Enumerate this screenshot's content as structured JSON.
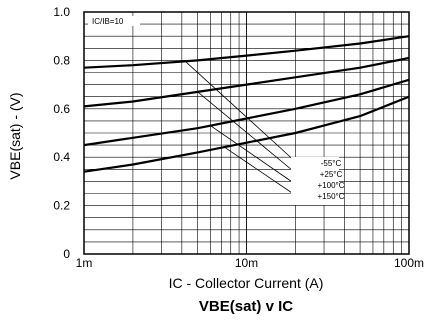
{
  "chart_data": {
    "type": "line",
    "title": "VBE(sat) v IC",
    "xlabel": "IC - Collector Current (A)",
    "ylabel": "VBE(sat) - (V)",
    "x_scale": "log",
    "xlim": [
      0.001,
      0.1
    ],
    "ylim": [
      0,
      1.0
    ],
    "grid": true,
    "x_tick_labels": [
      "1m",
      "10m",
      "100m"
    ],
    "y_tick_labels": [
      "0",
      "0.2",
      "0.4",
      "0.6",
      "0.8",
      "1.0"
    ],
    "condition_label": "IC/IB=10",
    "series": [
      {
        "name": "-55°C",
        "x": [
          0.001,
          0.002,
          0.005,
          0.01,
          0.02,
          0.05,
          0.1
        ],
        "y": [
          0.77,
          0.78,
          0.8,
          0.82,
          0.84,
          0.87,
          0.9
        ]
      },
      {
        "name": "+25°C",
        "x": [
          0.001,
          0.002,
          0.005,
          0.01,
          0.02,
          0.05,
          0.1
        ],
        "y": [
          0.61,
          0.63,
          0.67,
          0.7,
          0.73,
          0.77,
          0.81
        ]
      },
      {
        "name": "+100°C",
        "x": [
          0.001,
          0.002,
          0.005,
          0.01,
          0.02,
          0.05,
          0.1
        ],
        "y": [
          0.45,
          0.48,
          0.52,
          0.56,
          0.6,
          0.66,
          0.72
        ]
      },
      {
        "name": "+150°C",
        "x": [
          0.001,
          0.002,
          0.005,
          0.01,
          0.02,
          0.05,
          0.1
        ],
        "y": [
          0.34,
          0.37,
          0.42,
          0.46,
          0.5,
          0.57,
          0.65
        ]
      }
    ]
  }
}
